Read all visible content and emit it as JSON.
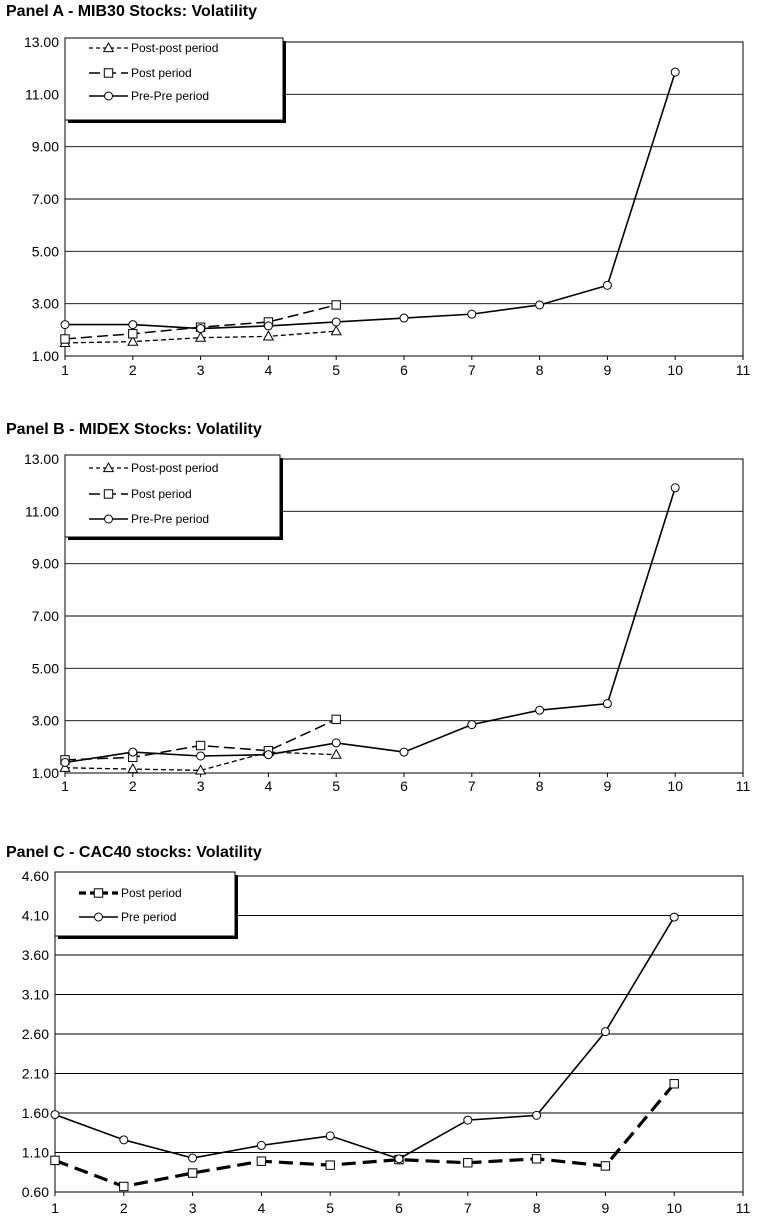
{
  "chart_data": [
    {
      "type": "line",
      "title": "Panel A - MIB30 Stocks: Volatility",
      "xlabel": "",
      "ylabel": "",
      "xlim": [
        1,
        11
      ],
      "ylim": [
        1.0,
        13.0
      ],
      "x_ticks": [
        "1",
        "2",
        "3",
        "4",
        "5",
        "6",
        "7",
        "8",
        "9",
        "10",
        "11"
      ],
      "y_ticks": [
        "1.00",
        "3.00",
        "5.00",
        "7.00",
        "9.00",
        "11.00",
        "13.00"
      ],
      "grid": "horizontal",
      "legend": "top-left",
      "series": [
        {
          "name": "Post-post period",
          "marker": "triangle",
          "dash": "short",
          "x": [
            1,
            2,
            3,
            4,
            5
          ],
          "values": [
            1.5,
            1.55,
            1.7,
            1.75,
            1.95
          ]
        },
        {
          "name": "Post period",
          "marker": "square",
          "dash": "long",
          "x": [
            1,
            2,
            3,
            4,
            5
          ],
          "values": [
            1.65,
            1.85,
            2.1,
            2.3,
            2.95
          ]
        },
        {
          "name": "Pre-Pre period",
          "marker": "circle",
          "dash": "solid",
          "x": [
            1,
            2,
            3,
            4,
            5,
            6,
            7,
            8,
            9,
            10
          ],
          "values": [
            2.2,
            2.2,
            2.05,
            2.15,
            2.3,
            2.45,
            2.6,
            2.95,
            3.7,
            11.85
          ]
        }
      ]
    },
    {
      "type": "line",
      "title": "Panel B - MIDEX Stocks: Volatility",
      "xlabel": "",
      "ylabel": "",
      "xlim": [
        1,
        11
      ],
      "ylim": [
        1.0,
        13.0
      ],
      "x_ticks": [
        "1",
        "2",
        "3",
        "4",
        "5",
        "6",
        "7",
        "8",
        "9",
        "10",
        "11"
      ],
      "y_ticks": [
        "1.00",
        "3.00",
        "5.00",
        "7.00",
        "9.00",
        "11.00",
        "13.00"
      ],
      "grid": "horizontal",
      "legend": "top-left",
      "series": [
        {
          "name": "Post-post period",
          "marker": "triangle",
          "dash": "short",
          "x": [
            1,
            2,
            3,
            4,
            5
          ],
          "values": [
            1.2,
            1.15,
            1.1,
            1.8,
            1.7
          ]
        },
        {
          "name": "Post period",
          "marker": "square",
          "dash": "long",
          "x": [
            1,
            2,
            3,
            4,
            5
          ],
          "values": [
            1.5,
            1.6,
            2.05,
            1.85,
            3.05
          ]
        },
        {
          "name": "Pre-Pre period",
          "marker": "circle",
          "dash": "solid",
          "x": [
            1,
            2,
            3,
            4,
            5,
            6,
            7,
            8,
            9,
            10
          ],
          "values": [
            1.4,
            1.8,
            1.65,
            1.7,
            2.15,
            1.8,
            2.85,
            3.4,
            3.65,
            11.9
          ]
        }
      ]
    },
    {
      "type": "line",
      "title": "Panel C - CAC40 stocks: Volatility",
      "xlabel": "",
      "ylabel": "",
      "xlim": [
        1,
        11
      ],
      "ylim": [
        0.6,
        4.6
      ],
      "x_ticks": [
        "1",
        "2",
        "3",
        "4",
        "5",
        "6",
        "7",
        "8",
        "9",
        "10",
        "11"
      ],
      "y_ticks": [
        "0.60",
        "1.10",
        "1.60",
        "2.10",
        "2.60",
        "3.10",
        "3.60",
        "4.10",
        "4.60"
      ],
      "grid": "horizontal",
      "legend": "top-left",
      "series": [
        {
          "name": "Post period",
          "marker": "square",
          "dash": "bold",
          "x": [
            1,
            2,
            3,
            4,
            5,
            6,
            7,
            8,
            9,
            10
          ],
          "values": [
            1.0,
            0.67,
            0.84,
            0.99,
            0.94,
            1.01,
            0.97,
            1.02,
            0.93,
            1.97
          ]
        },
        {
          "name": "Pre period",
          "marker": "circle",
          "dash": "solid",
          "x": [
            1,
            2,
            3,
            4,
            5,
            6,
            7,
            8,
            9,
            10
          ],
          "values": [
            1.58,
            1.26,
            1.03,
            1.19,
            1.31,
            1.02,
            1.51,
            1.57,
            2.63,
            4.08
          ]
        }
      ]
    }
  ]
}
